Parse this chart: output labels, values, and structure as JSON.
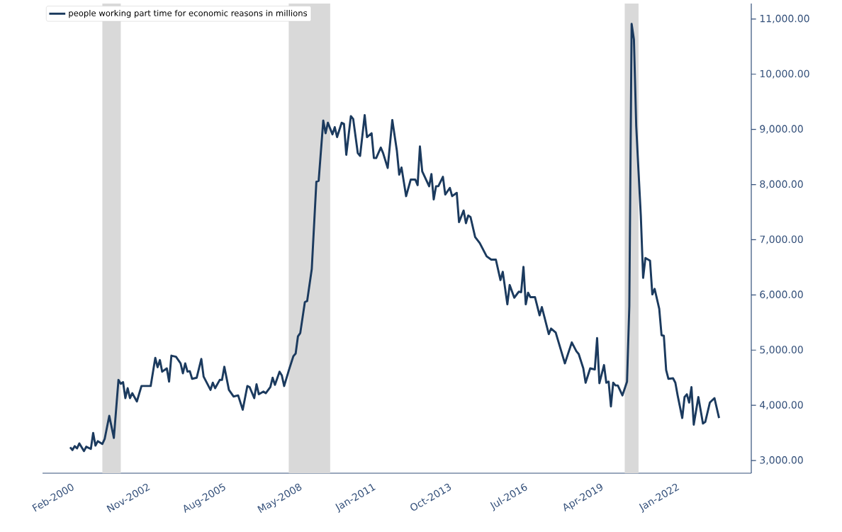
{
  "chart_data": {
    "type": "line",
    "x": [
      "2000-01",
      "2000-02",
      "2000-03",
      "2000-04",
      "2000-05",
      "2000-07",
      "2000-08",
      "2000-10",
      "2000-11",
      "2000-12",
      "2001-01",
      "2001-03",
      "2001-04",
      "2001-06",
      "2001-08",
      "2001-10",
      "2001-11",
      "2001-12",
      "2002-01",
      "2002-02",
      "2002-03",
      "2002-04",
      "2002-06",
      "2002-08",
      "2002-12",
      "2003-02",
      "2003-03",
      "2003-04",
      "2003-05",
      "2003-07",
      "2003-08",
      "2003-09",
      "2003-11",
      "2004-01",
      "2004-02",
      "2004-03",
      "2004-04",
      "2004-05",
      "2004-06",
      "2004-08",
      "2004-10",
      "2004-11",
      "2005-02",
      "2005-03",
      "2005-04",
      "2005-06",
      "2005-07",
      "2005-08",
      "2005-10",
      "2005-12",
      "2006-02",
      "2006-04",
      "2006-06",
      "2006-07",
      "2006-09",
      "2006-10",
      "2006-11",
      "2007-01",
      "2007-02",
      "2007-04",
      "2007-05",
      "2007-06",
      "2007-08",
      "2007-09",
      "2007-10",
      "2007-12",
      "2008-02",
      "2008-03",
      "2008-04",
      "2008-05",
      "2008-07",
      "2008-08",
      "2008-10",
      "2008-12",
      "2009-01",
      "2009-03",
      "2009-04",
      "2009-05",
      "2009-07",
      "2009-08",
      "2009-09",
      "2009-11",
      "2009-12",
      "2010-01",
      "2010-03",
      "2010-04",
      "2010-06",
      "2010-07",
      "2010-09",
      "2010-10",
      "2010-12",
      "2011-01",
      "2011-02",
      "2011-04",
      "2011-05",
      "2011-07",
      "2011-09",
      "2011-11",
      "2011-12",
      "2012-01",
      "2012-03",
      "2012-05",
      "2012-07",
      "2012-08",
      "2012-09",
      "2012-10",
      "2013-01",
      "2013-02",
      "2013-03",
      "2013-04",
      "2013-05",
      "2013-07",
      "2013-08",
      "2013-10",
      "2013-11",
      "2014-01",
      "2014-02",
      "2014-04",
      "2014-05",
      "2014-06",
      "2014-07",
      "2014-09",
      "2014-11",
      "2015-02",
      "2015-04",
      "2015-06",
      "2015-08",
      "2015-09",
      "2015-11",
      "2015-12",
      "2016-02",
      "2016-04",
      "2016-05",
      "2016-06",
      "2016-07",
      "2016-08",
      "2016-09",
      "2016-11",
      "2017-01",
      "2017-02",
      "2017-05",
      "2017-06",
      "2017-08",
      "2017-12",
      "2018-03",
      "2018-05",
      "2018-06",
      "2018-08",
      "2018-09",
      "2018-11",
      "2019-01",
      "2019-02",
      "2019-03",
      "2019-05",
      "2019-06",
      "2019-07",
      "2019-08",
      "2019-09",
      "2019-10",
      "2019-11",
      "2020-01",
      "2020-03",
      "2020-04",
      "2020-05",
      "2020-06",
      "2020-07",
      "2020-08",
      "2020-09",
      "2020-10",
      "2020-11",
      "2021-01",
      "2021-02",
      "2021-03",
      "2021-05",
      "2021-06",
      "2021-07",
      "2021-08",
      "2021-09",
      "2021-11",
      "2021-12",
      "2022-01",
      "2022-03",
      "2022-04",
      "2022-05",
      "2022-06",
      "2022-07",
      "2022-08",
      "2022-10",
      "2022-12",
      "2023-01",
      "2023-03",
      "2023-05",
      "2023-07"
    ],
    "series": [
      {
        "name": "people working part time for economic reasons in millions",
        "color": "#1b3a5e",
        "values": [
          3240,
          3190,
          3260,
          3220,
          3310,
          3170,
          3250,
          3210,
          3500,
          3270,
          3350,
          3300,
          3390,
          3810,
          3410,
          4460,
          4390,
          4420,
          4130,
          4310,
          4130,
          4220,
          4070,
          4350,
          4350,
          4860,
          4690,
          4820,
          4610,
          4670,
          4430,
          4900,
          4880,
          4760,
          4580,
          4760,
          4610,
          4620,
          4480,
          4500,
          4840,
          4520,
          4280,
          4410,
          4310,
          4460,
          4460,
          4700,
          4280,
          4160,
          4180,
          3920,
          4350,
          4330,
          4130,
          4380,
          4200,
          4250,
          4220,
          4330,
          4500,
          4370,
          4610,
          4540,
          4350,
          4630,
          4890,
          4940,
          5250,
          5310,
          5870,
          5890,
          6470,
          8050,
          8070,
          9160,
          8930,
          9120,
          8910,
          9040,
          8860,
          9120,
          9100,
          8540,
          9240,
          9190,
          8570,
          8520,
          9260,
          8860,
          8930,
          8480,
          8480,
          8670,
          8570,
          8300,
          9170,
          8610,
          8180,
          8310,
          7790,
          8090,
          8090,
          7990,
          8690,
          8240,
          7970,
          8190,
          7730,
          7970,
          7970,
          8140,
          7820,
          7940,
          7790,
          7850,
          7320,
          7530,
          7300,
          7440,
          7410,
          7050,
          6940,
          6700,
          6640,
          6640,
          6270,
          6420,
          5830,
          6180,
          5950,
          6060,
          6050,
          6510,
          5830,
          6040,
          5960,
          5960,
          5630,
          5780,
          5290,
          5390,
          5320,
          4760,
          5140,
          4980,
          4930,
          4670,
          4410,
          4670,
          4650,
          5220,
          4400,
          4730,
          4410,
          4430,
          3980,
          4410,
          4360,
          4360,
          4180,
          4430,
          5800,
          10910,
          10630,
          9060,
          8240,
          7430,
          6310,
          6670,
          6620,
          6010,
          6110,
          5750,
          5270,
          5260,
          4640,
          4480,
          4490,
          4410,
          4180,
          3770,
          4150,
          4200,
          4050,
          4330,
          3650,
          4150,
          3670,
          3700,
          4050,
          4130,
          3770
        ]
      }
    ],
    "xlim": [
      "1999-01",
      "2024-09"
    ],
    "xticks": [
      {
        "value": "2000-02",
        "label": "Feb-2000"
      },
      {
        "value": "2002-11",
        "label": "Nov-2002"
      },
      {
        "value": "2005-08",
        "label": "Aug-2005"
      },
      {
        "value": "2008-05",
        "label": "May-2008"
      },
      {
        "value": "2011-01",
        "label": "Jan-2011"
      },
      {
        "value": "2013-10",
        "label": "Oct-2013"
      },
      {
        "value": "2016-07",
        "label": "Jul-2016"
      },
      {
        "value": "2019-04",
        "label": "Apr-2019"
      },
      {
        "value": "2022-01",
        "label": "Jan-2022"
      }
    ],
    "ylim": [
      2770,
      11280
    ],
    "yticks": [
      {
        "value": 3000,
        "label": "3,000.00"
      },
      {
        "value": 4000,
        "label": "4,000.00"
      },
      {
        "value": 5000,
        "label": "5,000.00"
      },
      {
        "value": 6000,
        "label": "6,000.00"
      },
      {
        "value": 7000,
        "label": "7,000.00"
      },
      {
        "value": 8000,
        "label": "8,000.00"
      },
      {
        "value": 9000,
        "label": "9,000.00"
      },
      {
        "value": 10000,
        "label": "10,000.00"
      },
      {
        "value": 11000,
        "label": "11,000.00"
      }
    ],
    "bands": [
      {
        "axis": "x",
        "from": "2001-03",
        "to": "2001-11",
        "color": "#d9d9d9"
      },
      {
        "axis": "x",
        "from": "2007-12",
        "to": "2009-06",
        "color": "#d9d9d9"
      },
      {
        "axis": "x",
        "from": "2020-02",
        "to": "2020-08",
        "color": "#d9d9d9"
      }
    ],
    "legend": "top left",
    "grid": false,
    "marker": "none",
    "line_style": "solid"
  }
}
